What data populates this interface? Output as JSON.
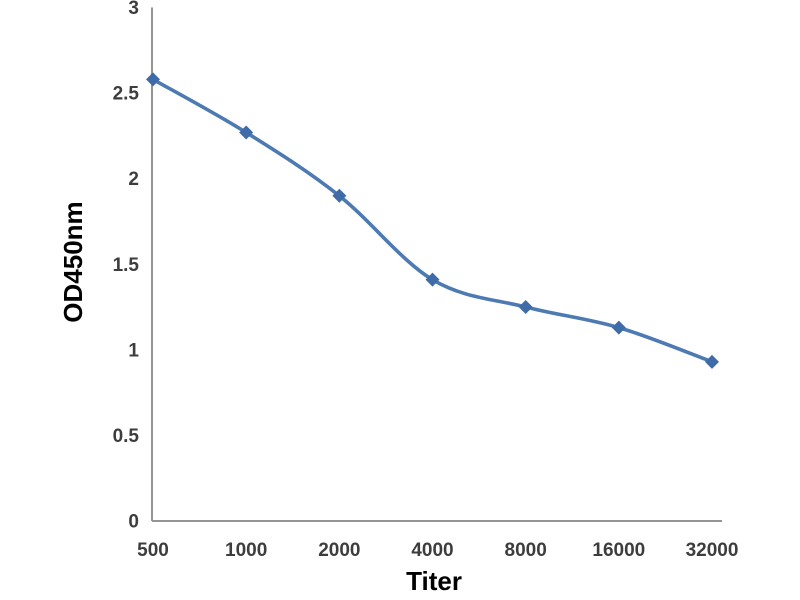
{
  "figure": {
    "background": "#ffffff"
  },
  "chart_data": {
    "type": "line",
    "title": "",
    "categories": [
      "500",
      "1000",
      "2000",
      "4000",
      "8000",
      "16000",
      "32000"
    ],
    "series": [
      {
        "name": "OD450nm",
        "values": [
          2.58,
          2.27,
          1.9,
          1.41,
          1.25,
          1.13,
          0.93
        ]
      }
    ],
    "xlabel": "Titer",
    "ylabel": "OD450nm",
    "ylim": [
      0,
      3
    ],
    "ytick_interval": 0.5,
    "ytick_labels": [
      "0",
      "0.5",
      "1",
      "1.5",
      "2",
      "2.5",
      "3"
    ],
    "grid": false,
    "legend": "none",
    "line_style": "smooth",
    "marker": "diamond",
    "colors": {
      "line": "#4d7ab3",
      "marker": "#3f6ca8",
      "axis": "#949494",
      "tick_label": "#3d3d3d",
      "axis_title": "#000000"
    }
  }
}
